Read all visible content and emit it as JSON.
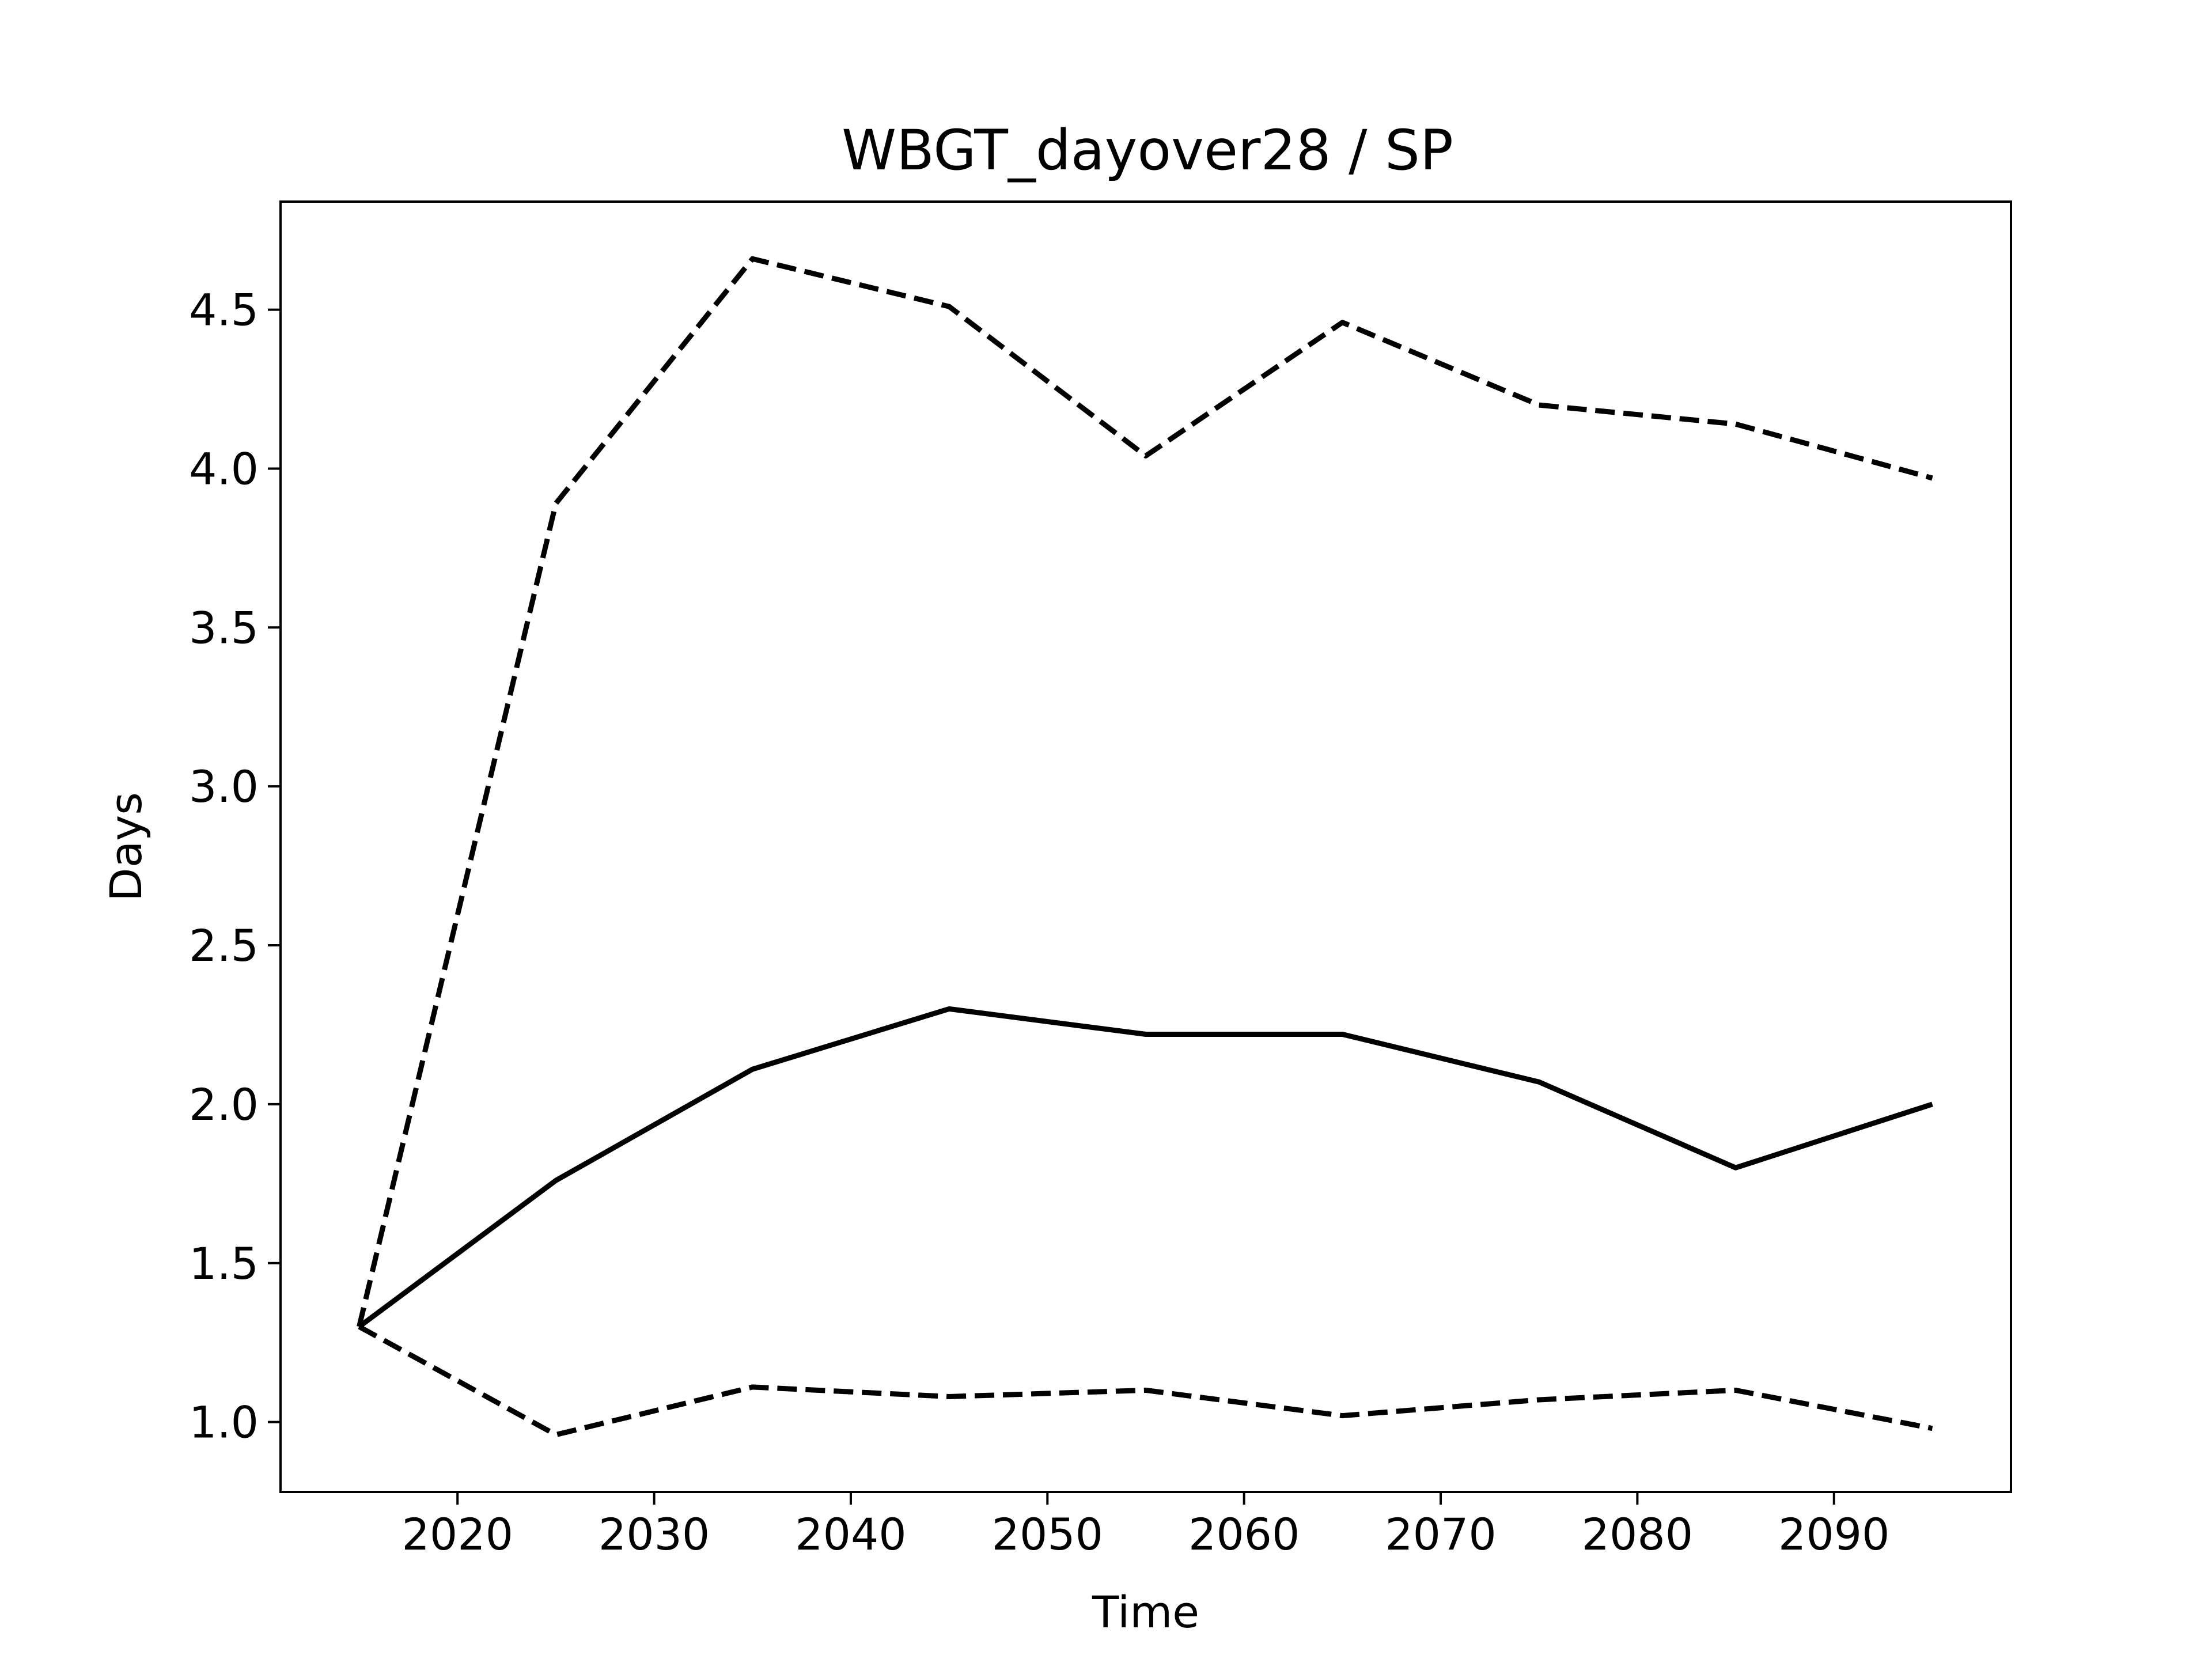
{
  "chart_data": {
    "type": "line",
    "title": "WBGT_dayover28 / SP",
    "xlabel": "Time",
    "ylabel": "Days",
    "xlim": [
      2011,
      2099
    ],
    "ylim": [
      0.78,
      4.84
    ],
    "xticks": [
      2020,
      2030,
      2040,
      2050,
      2060,
      2070,
      2080,
      2090
    ],
    "yticks": [
      1.0,
      1.5,
      2.0,
      2.5,
      3.0,
      3.5,
      4.0,
      4.5
    ],
    "x": [
      2015,
      2025,
      2035,
      2045,
      2055,
      2065,
      2075,
      2085,
      2095
    ],
    "series": [
      {
        "style": "dashed",
        "color": "#000000",
        "values": [
          1.3,
          3.89,
          4.66,
          4.51,
          4.04,
          4.46,
          4.2,
          4.14,
          3.97
        ]
      },
      {
        "style": "solid",
        "color": "#000000",
        "values": [
          1.3,
          1.76,
          2.11,
          2.3,
          2.22,
          2.22,
          2.07,
          1.8,
          2.0
        ]
      },
      {
        "style": "dashed",
        "color": "#000000",
        "values": [
          1.3,
          0.96,
          1.11,
          1.08,
          1.1,
          1.02,
          1.07,
          1.1,
          0.98
        ]
      }
    ],
    "grid": false,
    "legend": "none"
  }
}
